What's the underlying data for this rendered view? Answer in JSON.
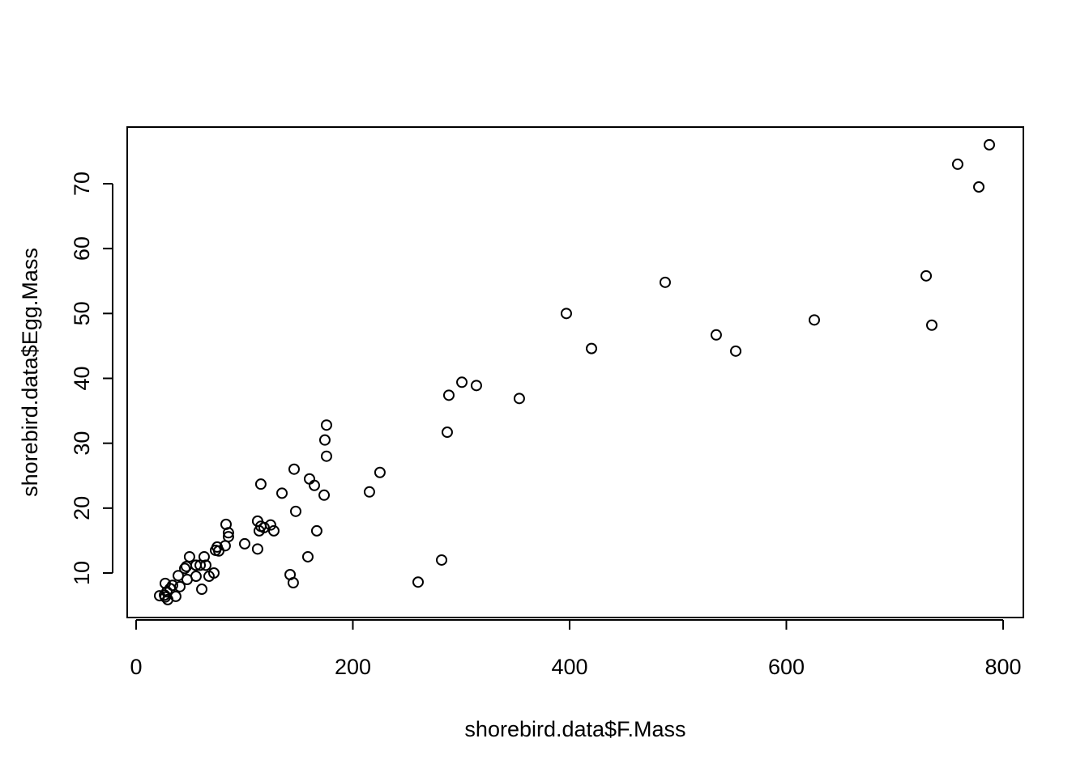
{
  "chart_data": {
    "type": "scatter",
    "xlabel": "shorebird.data$F.Mass",
    "ylabel": "shorebird.data$Egg.Mass",
    "color": "#000000",
    "xlim": [
      -8.2,
      818.7
    ],
    "ylim": [
      3.14,
      78.73
    ],
    "xticks": [
      0,
      200,
      400,
      600,
      800
    ],
    "yticks": [
      10,
      20,
      30,
      40,
      50,
      60,
      70
    ],
    "x": [
      787.3,
      758.1,
      777.6,
      729.0,
      734.2,
      625.8,
      488.2,
      535.3,
      553.3,
      397.0,
      420.2,
      353.6,
      300.6,
      314.0,
      288.6,
      287.1,
      281.9,
      260.2,
      225.0,
      215.3,
      175.7,
      174.2,
      175.7,
      173.5,
      164.5,
      160.0,
      145.8,
      134.6,
      115.1,
      147.3,
      166.7,
      158.5,
      142.1,
      145.0,
      112.1,
      115.1,
      118.1,
      113.6,
      124.1,
      127.1,
      112.1,
      100.2,
      83.0,
      85.2,
      85.2,
      82.2,
      74.8,
      73.3,
      76.3,
      71.8,
      67.3,
      62.8,
      64.3,
      59.1,
      55.3,
      60.6,
      55.3,
      49.3,
      44.9,
      46.4,
      47.1,
      38.9,
      40.4,
      33.6,
      31.4,
      36.6,
      26.9,
      28.4,
      26.2,
      21.7,
      29.2,
      26.9
    ],
    "values": [
      76.0,
      73.0,
      69.5,
      55.8,
      48.2,
      49.0,
      54.8,
      46.7,
      44.2,
      50.0,
      44.6,
      36.9,
      39.4,
      38.9,
      37.4,
      31.7,
      12.0,
      8.6,
      25.5,
      22.5,
      32.8,
      30.5,
      28.0,
      22.0,
      23.5,
      24.5,
      26.0,
      22.3,
      23.7,
      19.5,
      16.5,
      12.5,
      9.75,
      8.5,
      18.0,
      17.2,
      17.0,
      16.5,
      17.4,
      16.5,
      13.7,
      14.5,
      17.5,
      16.2,
      15.6,
      14.2,
      14.0,
      13.5,
      13.4,
      10.0,
      9.5,
      12.5,
      11.2,
      11.2,
      11.2,
      7.5,
      9.5,
      12.5,
      10.7,
      11.0,
      9.0,
      9.6,
      7.9,
      8.1,
      7.6,
      6.4,
      8.4,
      7.1,
      6.6,
      6.5,
      5.9,
      6.3
    ]
  }
}
